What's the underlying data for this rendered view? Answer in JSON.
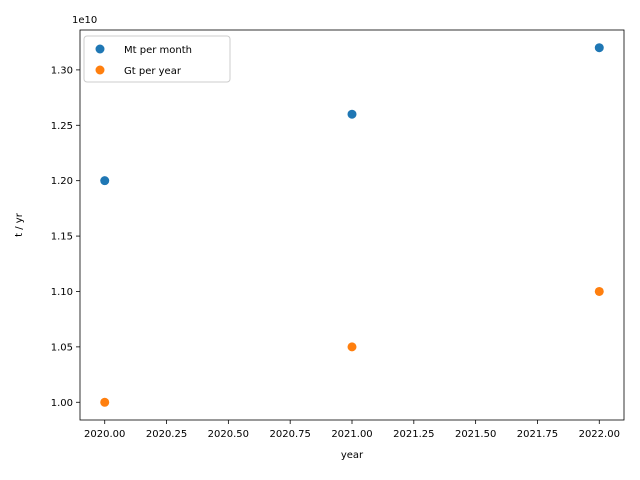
{
  "chart_data": {
    "type": "scatter",
    "xlabel": "year",
    "ylabel": "t / yr",
    "y_offset_label": "1e10",
    "y_scale_factor": 10000000000,
    "xlim": [
      2019.9,
      2022.1
    ],
    "ylim": [
      9840000000.0,
      13360000000.0
    ],
    "x_ticks": [
      2020.0,
      2020.25,
      2020.5,
      2020.75,
      2021.0,
      2021.25,
      2021.5,
      2021.75,
      2022.0
    ],
    "x_tick_labels": [
      "2020.00",
      "2020.25",
      "2020.50",
      "2020.75",
      "2021.00",
      "2021.25",
      "2021.50",
      "2021.75",
      "2022.00"
    ],
    "y_ticks": [
      10000000000.0,
      10500000000.0,
      11000000000.0,
      11500000000.0,
      12000000000.0,
      12500000000.0,
      13000000000.0
    ],
    "y_tick_labels": [
      "1.00",
      "1.05",
      "1.10",
      "1.15",
      "1.20",
      "1.25",
      "1.30"
    ],
    "legend_position": "top-left",
    "grid": false,
    "series": [
      {
        "name": "Mt per month",
        "color": "#1f77b4",
        "x": [
          2020,
          2021,
          2022
        ],
        "y": [
          12000000000.0,
          12600000000.0,
          13200000000.0
        ]
      },
      {
        "name": "Gt per year",
        "color": "#ff7f0e",
        "x": [
          2020,
          2021,
          2022
        ],
        "y": [
          10000000000.0,
          10500000000.0,
          11000000000.0
        ]
      }
    ]
  }
}
